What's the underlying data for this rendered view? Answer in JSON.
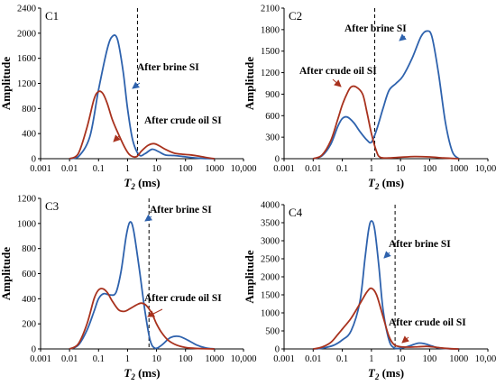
{
  "colors": {
    "brine": "#2e62ad",
    "crude": "#a8321e",
    "axis": "#000000",
    "boundary": "#000000"
  },
  "chart_data": [
    {
      "type": "line",
      "panel_label": "C1",
      "xscale": "log",
      "xlim": [
        0.001,
        10000
      ],
      "ylim": [
        0,
        2400
      ],
      "xticks": [
        "0.001",
        "0.01",
        "0.1",
        "1",
        "10",
        "100",
        "1000",
        "10,000"
      ],
      "yticks": [
        "0",
        "400",
        "800",
        "1200",
        "1600",
        "2000",
        "2400"
      ],
      "xlabel_main": "T",
      "xlabel_sub": "2",
      "xlabel_unit": "(ms)",
      "ylabel": "Amplitude",
      "cutoff": 2.2,
      "legend": "none",
      "grid": false,
      "annotations": {
        "brine": "After brine SI",
        "crude": "After crude oil SI"
      },
      "series": [
        {
          "key": "brine",
          "x": [
            0.01,
            0.02,
            0.05,
            0.1,
            0.2,
            0.3,
            0.45,
            0.7,
            1.0,
            1.5,
            2.5,
            4,
            7,
            12,
            20,
            40,
            80,
            150,
            300,
            600,
            1000
          ],
          "y": [
            0,
            30,
            350,
            1100,
            1750,
            1950,
            1900,
            1400,
            800,
            300,
            60,
            80,
            150,
            110,
            60,
            50,
            35,
            20,
            8,
            2,
            0
          ]
        },
        {
          "key": "crude",
          "x": [
            0.01,
            0.02,
            0.04,
            0.07,
            0.1,
            0.14,
            0.2,
            0.3,
            0.5,
            0.8,
            1.2,
            2,
            3,
            5,
            8,
            12,
            20,
            40,
            80,
            150,
            300,
            500,
            800,
            1000
          ],
          "y": [
            0,
            80,
            500,
            950,
            1070,
            1040,
            880,
            620,
            380,
            180,
            60,
            30,
            120,
            210,
            240,
            210,
            150,
            90,
            70,
            60,
            40,
            20,
            5,
            0
          ]
        }
      ]
    },
    {
      "type": "line",
      "panel_label": "C2",
      "xscale": "log",
      "xlim": [
        0.001,
        10000
      ],
      "ylim": [
        0,
        2100
      ],
      "xticks": [
        "0.001",
        "0.01",
        "0.1",
        "1",
        "10",
        "100",
        "1000",
        "10,000"
      ],
      "yticks": [
        "0",
        "300",
        "600",
        "900",
        "1200",
        "1500",
        "1800",
        "2100"
      ],
      "xlabel_main": "T",
      "xlabel_sub": "2",
      "xlabel_unit": "(ms)",
      "ylabel": "Amplitude",
      "cutoff": 1.3,
      "legend": "none",
      "grid": false,
      "annotations": {
        "brine": "After brine SI",
        "crude": "After crude oil SI"
      },
      "series": [
        {
          "key": "brine",
          "x": [
            0.01,
            0.02,
            0.04,
            0.07,
            0.1,
            0.15,
            0.25,
            0.4,
            0.7,
            1.0,
            1.5,
            2.5,
            4,
            7,
            12,
            25,
            50,
            80,
            120,
            200,
            350,
            600,
            1000
          ],
          "y": [
            0,
            40,
            200,
            450,
            560,
            580,
            500,
            380,
            260,
            230,
            400,
            700,
            950,
            1050,
            1150,
            1400,
            1700,
            1780,
            1700,
            1200,
            500,
            100,
            0
          ]
        },
        {
          "key": "crude",
          "x": [
            0.01,
            0.02,
            0.04,
            0.07,
            0.1,
            0.15,
            0.2,
            0.3,
            0.5,
            0.7,
            1.0,
            1.5,
            2,
            4,
            10,
            30,
            100,
            300,
            1000
          ],
          "y": [
            0,
            50,
            250,
            550,
            750,
            920,
            1000,
            1000,
            900,
            650,
            350,
            100,
            20,
            10,
            20,
            30,
            25,
            10,
            0
          ]
        }
      ]
    },
    {
      "type": "line",
      "panel_label": "C3",
      "xscale": "log",
      "xlim": [
        0.001,
        10000
      ],
      "ylim": [
        0,
        1200
      ],
      "xticks": [
        "0.001",
        "0.01",
        "0.1",
        "1",
        "10",
        "100",
        "1000",
        "10,000"
      ],
      "yticks": [
        "0",
        "200",
        "400",
        "600",
        "800",
        "1000",
        "1200"
      ],
      "xlabel_main": "T",
      "xlabel_sub": "2",
      "xlabel_unit": "(ms)",
      "ylabel": "Amplitude",
      "cutoff": 5.5,
      "legend": "none",
      "grid": false,
      "annotations": {
        "brine": "After brine SI",
        "crude": "After crude oil SI"
      },
      "series": [
        {
          "key": "brine",
          "x": [
            0.01,
            0.02,
            0.04,
            0.07,
            0.1,
            0.15,
            0.25,
            0.4,
            0.6,
            0.9,
            1.2,
            1.6,
            2.5,
            4,
            6,
            9,
            15,
            30,
            60,
            120,
            250,
            500,
            1000
          ],
          "y": [
            0,
            30,
            150,
            300,
            400,
            440,
            430,
            450,
            620,
            900,
            1010,
            950,
            650,
            300,
            70,
            5,
            30,
            90,
            100,
            70,
            30,
            8,
            0
          ]
        },
        {
          "key": "crude",
          "x": [
            0.01,
            0.02,
            0.04,
            0.07,
            0.1,
            0.14,
            0.2,
            0.3,
            0.5,
            0.8,
            1.2,
            2,
            3,
            4.5,
            7,
            10,
            15,
            25,
            50,
            100,
            200,
            400,
            1000
          ],
          "y": [
            0,
            40,
            200,
            400,
            470,
            480,
            450,
            380,
            310,
            300,
            320,
            350,
            365,
            345,
            280,
            200,
            130,
            70,
            30,
            12,
            5,
            2,
            0
          ]
        }
      ]
    },
    {
      "type": "line",
      "panel_label": "C4",
      "xscale": "log",
      "xlim": [
        0.001,
        10000
      ],
      "ylim": [
        0,
        4000
      ],
      "xticks": [
        "0.001",
        "0.01",
        "0.1",
        "1",
        "10",
        "100",
        "1000",
        "10,000"
      ],
      "yticks": [
        "0",
        "500",
        "1000",
        "1500",
        "2000",
        "2500",
        "3000",
        "3500",
        "4000"
      ],
      "xlabel_main": "T",
      "xlabel_sub": "2",
      "xlabel_unit": "(ms)",
      "ylabel": "Amplitude",
      "cutoff": 6.5,
      "legend": "none",
      "grid": false,
      "annotations": {
        "brine": "After brine SI",
        "crude": "After crude oil SI"
      },
      "series": [
        {
          "key": "brine",
          "x": [
            0.01,
            0.02,
            0.05,
            0.1,
            0.2,
            0.4,
            0.6,
            0.8,
            1.0,
            1.3,
            1.8,
            2.5,
            4,
            6,
            10,
            20,
            40,
            70,
            120,
            200,
            500,
            1000
          ],
          "y": [
            0,
            20,
            100,
            250,
            500,
            1300,
            2500,
            3300,
            3550,
            3300,
            2300,
            1100,
            250,
            30,
            20,
            80,
            160,
            140,
            80,
            30,
            5,
            0
          ]
        },
        {
          "key": "crude",
          "x": [
            0.01,
            0.02,
            0.04,
            0.07,
            0.1,
            0.2,
            0.4,
            0.7,
            1.0,
            1.5,
            2.5,
            4,
            6,
            10,
            20,
            40,
            80,
            150,
            300,
            600,
            1000
          ],
          "y": [
            0,
            50,
            180,
            400,
            550,
            850,
            1250,
            1580,
            1680,
            1500,
            900,
            350,
            120,
            60,
            50,
            60,
            70,
            50,
            20,
            5,
            0
          ]
        }
      ]
    }
  ]
}
